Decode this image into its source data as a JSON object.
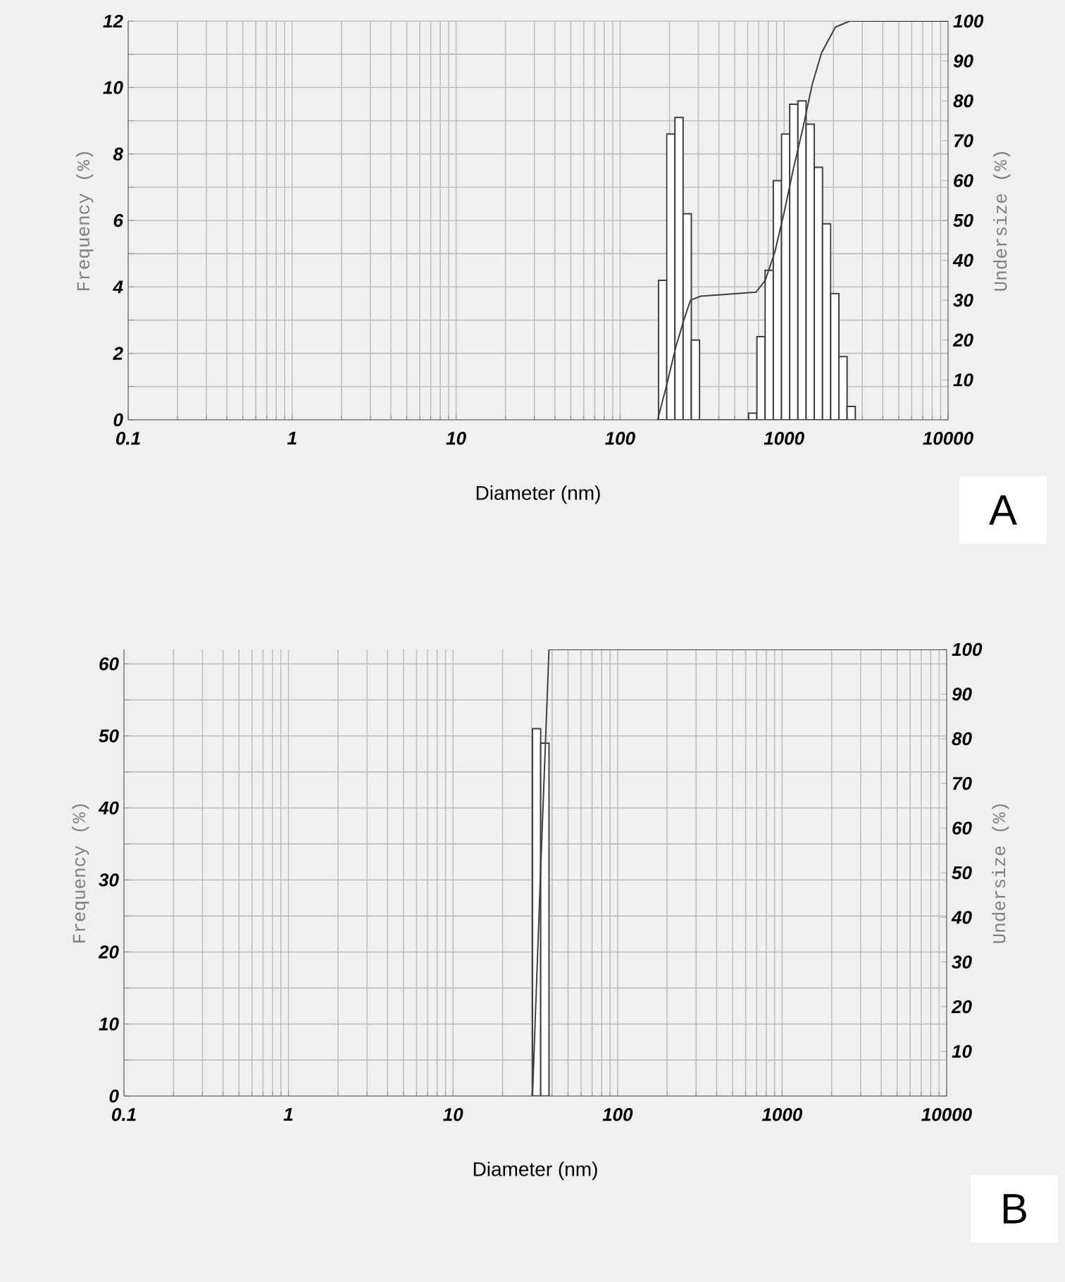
{
  "chart_data": [
    {
      "type": "histogram",
      "xlabel": "Diameter (nm)",
      "ylabel": "Frequency (%)",
      "y2label": "Undersize (%)",
      "log": "x",
      "grid": true,
      "annotations": [
        "A"
      ],
      "xlim": [
        0.1,
        10000
      ],
      "xticks": [
        0.1,
        1,
        10,
        100,
        1000,
        10000
      ],
      "ylim": [
        0,
        12
      ],
      "yticks": [
        0,
        {
          "value": 1,
          "label": null
        },
        2,
        {
          "value": 3,
          "label": null
        },
        4,
        {
          "value": 5,
          "label": null
        },
        6,
        {
          "value": 7,
          "label": null
        },
        8,
        {
          "value": 9,
          "label": null
        },
        10,
        {
          "value": 11,
          "label": null
        },
        12
      ],
      "y2lim": [
        0,
        100
      ],
      "y2ticks": [
        {
          "value": 0,
          "label": null
        },
        10,
        20,
        30,
        40,
        50,
        60,
        70,
        80,
        90,
        100
      ],
      "series": [
        {
          "color": "#404040",
          "bins": [
            171.5,
            192.4,
            215.9,
            242.2,
            271.8,
            304.9,
            342.1,
            383.9,
            430.7,
            483.3,
            542.3,
            608.4,
            682.7,
            766.0,
            859.5,
            964.4,
            1082,
            1214,
            1362,
            1528,
            1715,
            1924,
            2159,
            2422,
            2718
          ],
          "values": [
            4.2,
            8.6,
            9.1,
            6.2,
            2.4,
            0,
            0,
            0,
            0,
            0,
            0,
            0.2,
            2.5,
            4.5,
            7.2,
            8.6,
            9.5,
            9.6,
            8.9,
            7.6,
            5.9,
            3.8,
            1.9,
            0.4
          ]
        },
        {
          "type": "line",
          "axis": "y2",
          "color": "#404040",
          "x": [
            169.3,
            193.1,
            217.6,
            244.6,
            268.3,
            310,
            673,
            768,
            877,
            1000,
            1140,
            1300,
            1482,
            1690,
            2054,
            2512,
            10000
          ],
          "values": [
            0,
            9,
            18,
            25,
            30,
            31,
            32,
            35,
            42,
            52,
            63,
            73,
            84,
            92,
            98.5,
            100,
            100
          ]
        }
      ]
    },
    {
      "type": "histogram",
      "xlabel": "Diameter (nm)",
      "ylabel": "Frequency (%)",
      "y2label": "Undersize (%)",
      "log": "x",
      "grid": true,
      "annotations": [
        "B"
      ],
      "xlim": [
        0.1,
        10000
      ],
      "xticks": [
        0.1,
        1,
        10,
        100,
        1000,
        10000
      ],
      "ylim": [
        0,
        62
      ],
      "yticks": [
        0,
        {
          "value": 5,
          "label": null
        },
        10,
        {
          "value": 15,
          "label": null
        },
        20,
        {
          "value": 25,
          "label": null
        },
        30,
        {
          "value": 35,
          "label": null
        },
        40,
        {
          "value": 45,
          "label": null
        },
        50,
        {
          "value": 55,
          "label": null
        },
        60
      ],
      "y2lim": [
        0,
        100
      ],
      "y2ticks": [
        {
          "value": 0,
          "label": null
        },
        10,
        20,
        30,
        40,
        50,
        60,
        70,
        80,
        90,
        100
      ],
      "series": [
        {
          "color": "#404040",
          "bins": [
            30.4,
            34.1,
            38.3
          ],
          "values": [
            51,
            49
          ]
        },
        {
          "type": "line",
          "axis": "y2",
          "color": "#404040",
          "x": [
            30.4,
            34.1,
            38.3,
            10000
          ],
          "values": [
            0,
            51,
            100,
            100
          ]
        }
      ]
    }
  ]
}
